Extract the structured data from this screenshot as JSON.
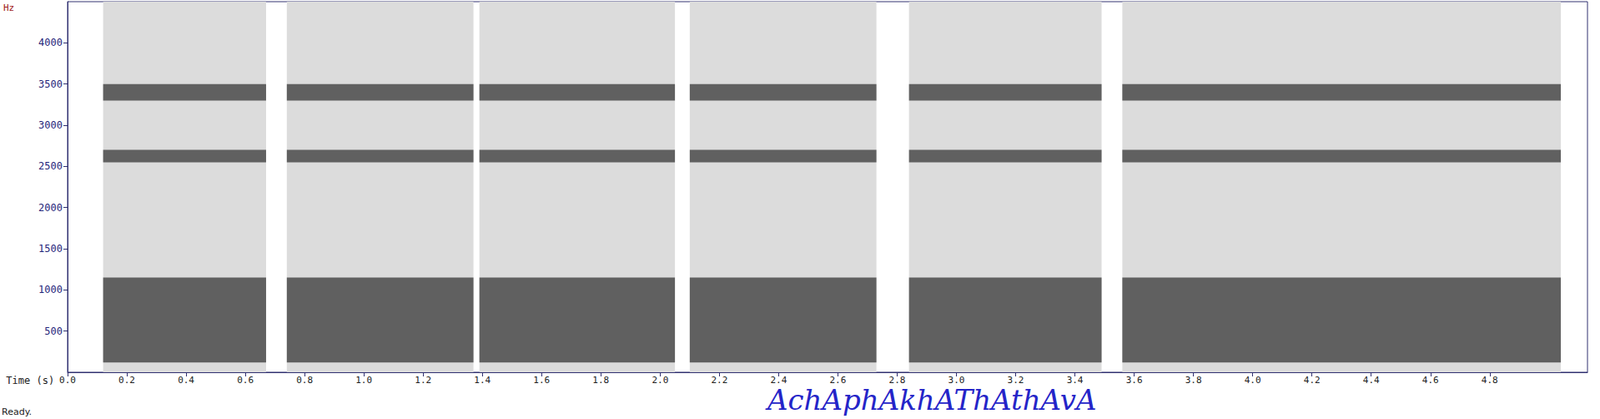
{
  "chart_data": {
    "type": "spectrogram",
    "y_label": "Hz",
    "x_label": "Time (s)",
    "caption": "AchAphAkhAThAthAvA",
    "status": "Ready.",
    "xlim": [
      0,
      5.13
    ],
    "ylim": [
      0,
      4500
    ],
    "grid": false,
    "xticks": [
      {
        "value": 0,
        "label": "0.0"
      },
      0.2,
      0.4,
      0.6,
      0.8,
      {
        "value": 1,
        "label": "1.0"
      },
      1.2,
      1.4,
      1.6,
      1.8,
      {
        "value": 2,
        "label": "2.0"
      },
      2.2,
      2.4,
      2.6,
      2.8,
      {
        "value": 3,
        "label": "3.0"
      },
      3.2,
      3.4,
      3.6,
      3.8,
      {
        "value": 4,
        "label": "4.0"
      },
      4.2,
      4.4,
      4.6,
      4.8
    ],
    "yticks": [
      500,
      1000,
      1500,
      2000,
      2500,
      3000,
      3500,
      4000
    ],
    "segments": [
      {
        "start": 0.12,
        "end": 0.67,
        "bands": [
          [
            120,
            1150
          ],
          [
            2550,
            2700
          ],
          [
            3300,
            3500
          ]
        ]
      },
      {
        "start": 0.74,
        "end": 1.37,
        "bands": [
          [
            120,
            1150
          ],
          [
            2550,
            2700
          ],
          [
            3300,
            3500
          ]
        ]
      },
      {
        "start": 1.39,
        "end": 2.05,
        "bands": [
          [
            120,
            1150
          ],
          [
            2550,
            2700
          ],
          [
            3300,
            3500
          ]
        ]
      },
      {
        "start": 2.1,
        "end": 2.73,
        "bands": [
          [
            120,
            1150
          ],
          [
            2550,
            2700
          ],
          [
            3300,
            3500
          ]
        ]
      },
      {
        "start": 2.84,
        "end": 3.49,
        "bands": [
          [
            120,
            1150
          ],
          [
            2550,
            2700
          ],
          [
            3300,
            3500
          ]
        ]
      },
      {
        "start": 3.56,
        "end": 5.04,
        "bands": [
          [
            120,
            1150
          ],
          [
            2550,
            2700
          ],
          [
            3300,
            3500
          ]
        ]
      }
    ]
  }
}
